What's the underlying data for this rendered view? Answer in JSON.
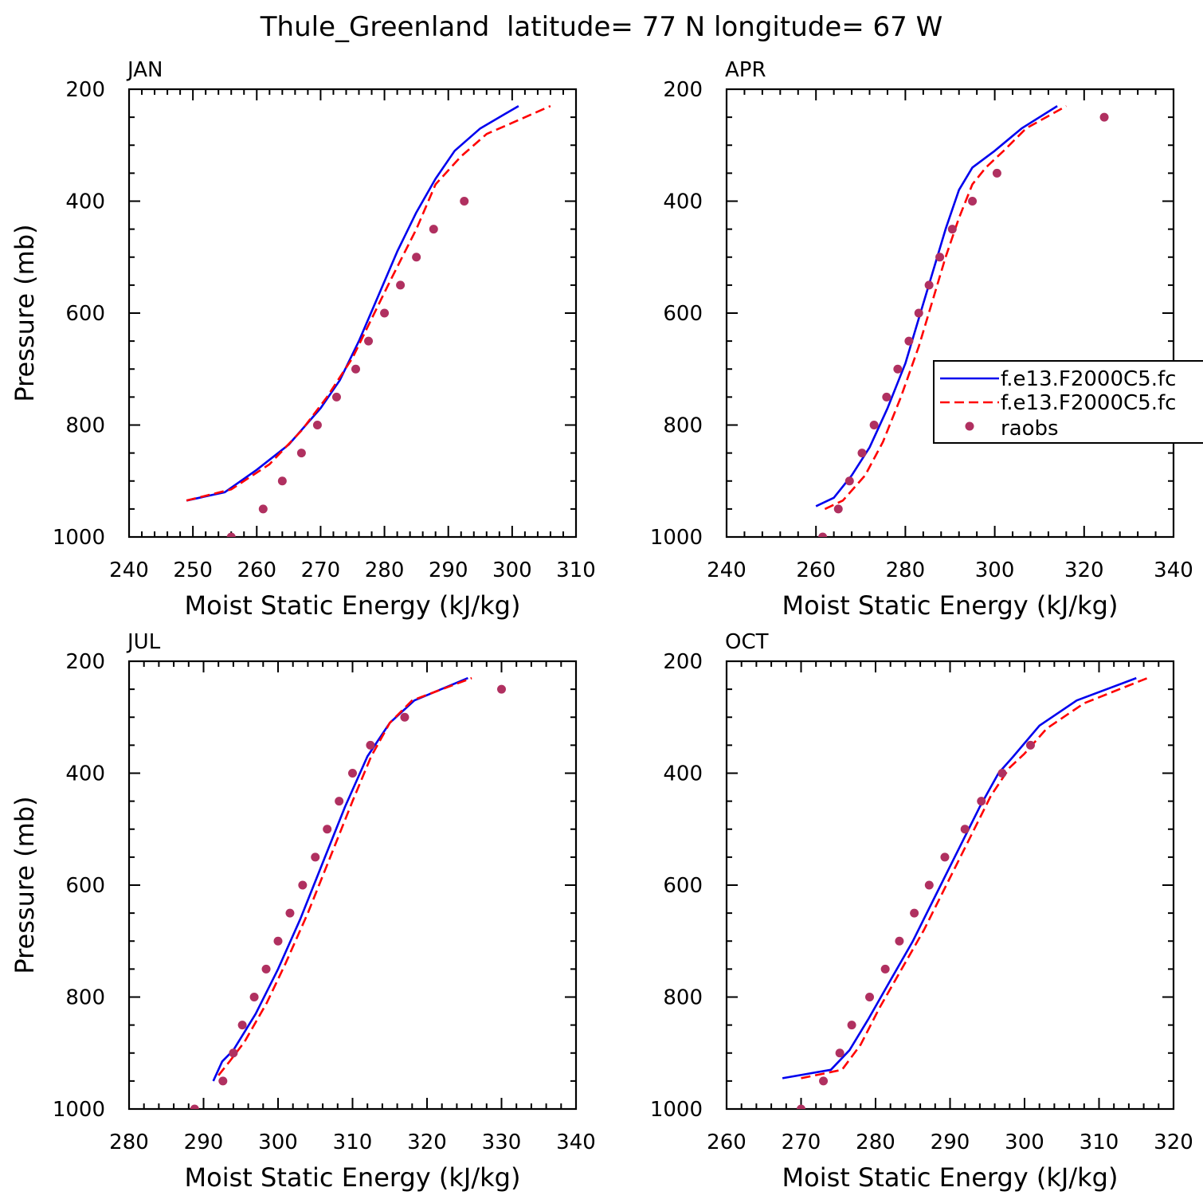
{
  "figure_title": "Thule_Greenland  latitude= 77 N longitude= 67 W",
  "colors": {
    "model1": "#0000ee",
    "model2": "#ff0000",
    "raobs": "#b03060",
    "axis": "#000000"
  },
  "legend": {
    "entries": [
      "f.e13.F2000C5.fc",
      "f.e13.F2000C5.fc",
      "raobs"
    ]
  },
  "chart_data": [
    {
      "type": "line",
      "title": "JAN",
      "xlabel": "Moist Static Energy (kJ/kg)",
      "ylabel": "Pressure (mb)",
      "xlim": [
        240,
        310
      ],
      "xticks": [
        240,
        250,
        260,
        270,
        280,
        290,
        300,
        310
      ],
      "ylim": [
        1000,
        200
      ],
      "yticks": [
        1000,
        800,
        600,
        400,
        200
      ],
      "series": [
        {
          "name": "f.e13.F2000C5.fc",
          "style": "solid",
          "x": [
            249,
            255,
            260,
            265,
            270,
            273,
            276,
            279,
            282,
            285,
            288,
            291,
            295,
            301
          ],
          "y": [
            935,
            920,
            880,
            835,
            770,
            720,
            650,
            570,
            490,
            420,
            360,
            310,
            270,
            230
          ]
        },
        {
          "name": "f.e13.F2000C5.fc",
          "style": "dashed",
          "x": [
            249,
            256,
            262,
            267,
            271,
            275,
            278,
            281,
            285,
            288,
            292,
            296,
            300,
            306
          ],
          "y": [
            935,
            915,
            870,
            810,
            750,
            680,
            610,
            540,
            450,
            370,
            320,
            280,
            260,
            230
          ]
        },
        {
          "name": "raobs",
          "style": "markers",
          "x": [
            256,
            261,
            264,
            267,
            269.5,
            272.5,
            275.5,
            277.5,
            280,
            282.5,
            285,
            287.7,
            292.5
          ],
          "y": [
            1000,
            950,
            900,
            850,
            800,
            750,
            700,
            650,
            600,
            550,
            500,
            450,
            400
          ]
        }
      ]
    },
    {
      "type": "line",
      "title": "APR",
      "xlabel": "Moist Static Energy (kJ/kg)",
      "ylabel": "",
      "xlim": [
        240,
        340
      ],
      "xticks": [
        240,
        260,
        280,
        300,
        320,
        340
      ],
      "ylim": [
        1000,
        200
      ],
      "yticks": [
        1000,
        800,
        600,
        400,
        200
      ],
      "series": [
        {
          "name": "f.e13.F2000C5.fc",
          "style": "solid",
          "x": [
            260,
            264,
            268,
            272,
            276,
            280,
            283,
            286,
            289,
            292,
            295,
            300,
            306,
            314
          ],
          "y": [
            945,
            930,
            890,
            840,
            770,
            690,
            610,
            530,
            450,
            380,
            340,
            310,
            270,
            230
          ]
        },
        {
          "name": "f.e13.F2000C5.fc",
          "style": "dashed",
          "x": [
            262,
            266,
            271,
            275,
            279,
            283,
            286,
            289,
            292,
            295,
            298,
            302,
            307,
            316
          ],
          "y": [
            950,
            935,
            890,
            830,
            750,
            660,
            580,
            500,
            430,
            370,
            340,
            310,
            270,
            230
          ]
        },
        {
          "name": "raobs",
          "style": "markers",
          "x": [
            261.5,
            265,
            267.5,
            270.3,
            273,
            275.8,
            278.3,
            280.8,
            283,
            285.3,
            287.7,
            290.5,
            295,
            300.5,
            324.5
          ],
          "y": [
            1000,
            950,
            900,
            850,
            800,
            750,
            700,
            650,
            600,
            550,
            500,
            450,
            400,
            350,
            250
          ]
        }
      ]
    },
    {
      "type": "line",
      "title": "JUL",
      "xlabel": "Moist Static Energy (kJ/kg)",
      "ylabel": "Pressure (mb)",
      "xlim": [
        280,
        340
      ],
      "xticks": [
        280,
        290,
        300,
        310,
        320,
        330,
        340
      ],
      "ylim": [
        1000,
        200
      ],
      "yticks": [
        1000,
        800,
        600,
        400,
        200
      ],
      "series": [
        {
          "name": "f.e13.F2000C5.fc",
          "style": "solid",
          "x": [
            291.3,
            292.5,
            294,
            297,
            300,
            303,
            306,
            309,
            312,
            315,
            318.3,
            325.5
          ],
          "y": [
            950,
            915,
            895,
            830,
            750,
            660,
            560,
            460,
            370,
            310,
            270,
            230
          ]
        },
        {
          "name": "f.e13.F2000C5.fc",
          "style": "dashed",
          "x": [
            292,
            293.5,
            295.5,
            298.5,
            301,
            304,
            307,
            310,
            312.5,
            315,
            318,
            326
          ],
          "y": [
            940,
            915,
            880,
            810,
            740,
            650,
            550,
            450,
            370,
            310,
            270,
            230
          ]
        },
        {
          "name": "raobs",
          "style": "markers",
          "x": [
            288.8,
            292.6,
            294,
            295.2,
            296.8,
            298.4,
            300,
            301.6,
            303.3,
            305,
            306.6,
            308.2,
            310,
            312.4,
            317,
            330
          ],
          "y": [
            1000,
            950,
            900,
            850,
            800,
            750,
            700,
            650,
            600,
            550,
            500,
            450,
            400,
            350,
            300,
            250
          ]
        }
      ]
    },
    {
      "type": "line",
      "title": "OCT",
      "xlabel": "Moist Static Energy (kJ/kg)",
      "ylabel": "",
      "xlim": [
        260,
        320
      ],
      "xticks": [
        260,
        270,
        280,
        290,
        300,
        310,
        320
      ],
      "ylim": [
        1000,
        200
      ],
      "yticks": [
        1000,
        800,
        600,
        400,
        200
      ],
      "series": [
        {
          "name": "f.e13.F2000C5.fc",
          "style": "solid",
          "x": [
            267.5,
            274,
            276.5,
            279,
            282,
            285,
            288,
            291,
            294,
            296.5,
            298.5,
            302,
            307,
            315
          ],
          "y": [
            945,
            930,
            895,
            840,
            770,
            700,
            620,
            540,
            460,
            400,
            370,
            315,
            270,
            230
          ]
        },
        {
          "name": "f.e13.F2000C5.fc",
          "style": "dashed",
          "x": [
            270,
            275.5,
            278,
            280.5,
            283.5,
            286.5,
            289.5,
            292.5,
            295.5,
            298,
            300,
            303,
            308,
            316.5
          ],
          "y": [
            945,
            930,
            885,
            820,
            750,
            680,
            600,
            520,
            440,
            390,
            365,
            320,
            275,
            230
          ]
        },
        {
          "name": "raobs",
          "style": "markers",
          "x": [
            270,
            273,
            275.2,
            276.8,
            279.2,
            281.3,
            283.2,
            285.2,
            287.2,
            289.3,
            292,
            294.2,
            297,
            300.8
          ],
          "y": [
            1000,
            950,
            900,
            850,
            800,
            750,
            700,
            650,
            600,
            550,
            500,
            450,
            400,
            350
          ]
        }
      ]
    }
  ]
}
